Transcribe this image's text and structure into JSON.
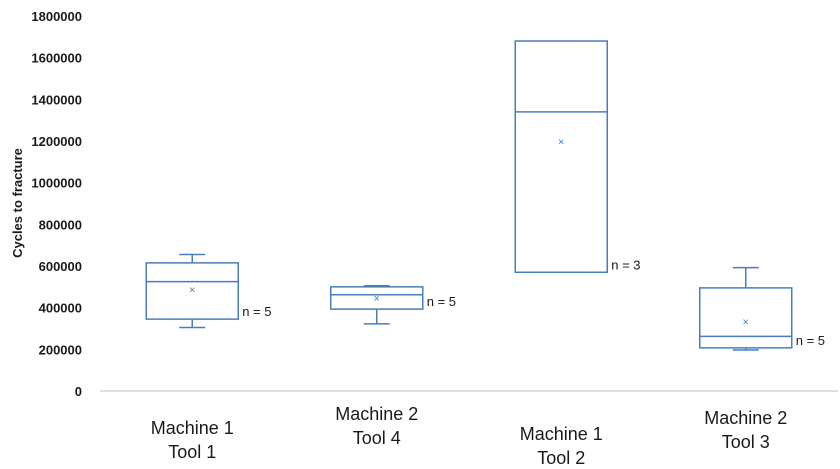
{
  "chart_data": {
    "type": "boxplot",
    "ylabel": "Cycles to fracture",
    "ylim": [
      0,
      1800000
    ],
    "yticks": [
      "0",
      "200000",
      "400000",
      "600000",
      "800000",
      "1000000",
      "1200000",
      "1400000",
      "1600000",
      "1800000"
    ],
    "grid": false,
    "colors": {
      "box": "#4a7ebb",
      "axis": "#bfbfbf",
      "text": "#1a1a1a"
    },
    "series": [
      {
        "category": [
          "Machine 1",
          "Tool 1"
        ],
        "whisker_low": 305000,
        "q1": 345000,
        "median": 525000,
        "q3": 615000,
        "whisker_high": 655000,
        "mean": 487000,
        "n_label": "n = 5"
      },
      {
        "category": [
          "Machine 2",
          "Tool 4"
        ],
        "whisker_low": 322000,
        "q1": 393000,
        "median": 462000,
        "q3": 500000,
        "whisker_high": 505000,
        "mean": 447000,
        "n_label": "n = 5"
      },
      {
        "category": [
          "Machine 1",
          "Tool 2"
        ],
        "whisker_low": 570000,
        "q1": 570000,
        "median": 1340000,
        "q3": 1680000,
        "whisker_high": 1680000,
        "mean": 1197000,
        "n_label": "n = 3"
      },
      {
        "category": [
          "Machine 2",
          "Tool 3"
        ],
        "whisker_low": 197000,
        "q1": 207000,
        "median": 262000,
        "q3": 495000,
        "whisker_high": 592000,
        "mean": 333000,
        "n_label": "n = 5"
      }
    ]
  }
}
